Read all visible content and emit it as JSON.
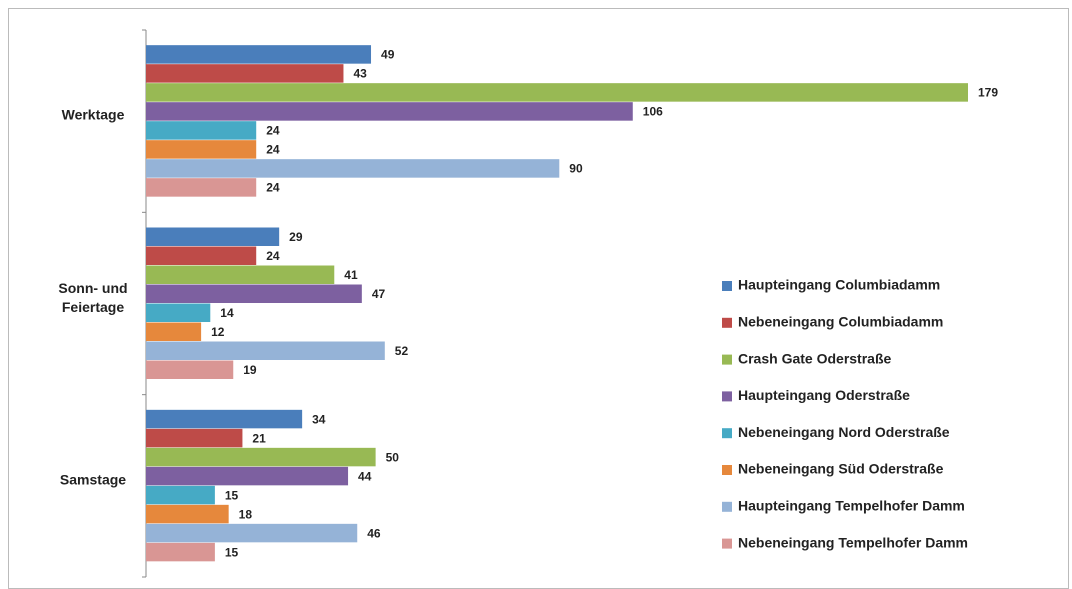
{
  "chart_data": {
    "type": "bar",
    "orientation": "horizontal",
    "categories": [
      "Werktage",
      "Sonn- und Feiertage",
      "Samstage"
    ],
    "series": [
      {
        "name": "Haupteingang Columbiadamm",
        "color": "#4a7ebb",
        "values": [
          49,
          29,
          34
        ]
      },
      {
        "name": "Nebeneingang Columbiadamm",
        "color": "#be4b48",
        "values": [
          43,
          24,
          21
        ]
      },
      {
        "name": "Crash Gate Oderstraße",
        "color": "#98b954",
        "values": [
          179,
          41,
          50
        ]
      },
      {
        "name": "Haupteingang Oderstraße",
        "color": "#7d60a0",
        "values": [
          106,
          47,
          44
        ]
      },
      {
        "name": "Nebeneingang Nord Oderstraße",
        "color": "#46aac5",
        "values": [
          24,
          14,
          15
        ]
      },
      {
        "name": "Nebeneingang Süd Oderstraße",
        "color": "#e6883c",
        "values": [
          24,
          12,
          18
        ]
      },
      {
        "name": "Haupteingang Tempelhofer Damm",
        "color": "#95b3d7",
        "values": [
          90,
          52,
          46
        ]
      },
      {
        "name": "Nebeneingang Tempelhofer Damm",
        "color": "#d99694",
        "values": [
          24,
          19,
          15
        ]
      }
    ],
    "legend": "right"
  }
}
